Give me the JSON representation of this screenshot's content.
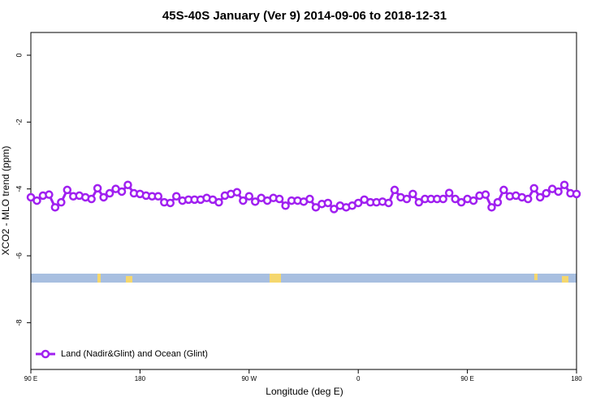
{
  "chart_data": {
    "type": "line",
    "title": "45S-40S January (Ver 9)   2014-09-06 to 2018-12-31",
    "x_label": "Longitude (deg E)",
    "y_label": "XCO2 - MLO trend (ppm)",
    "x": [
      90,
      95,
      100,
      105,
      110,
      115,
      120,
      125,
      130,
      135,
      140,
      145,
      150,
      155,
      160,
      165,
      170,
      175,
      180,
      185,
      190,
      195,
      200,
      205,
      210,
      215,
      220,
      225,
      230,
      235,
      240,
      245,
      250,
      255,
      260,
      265,
      270,
      275,
      280,
      285,
      290,
      295,
      300,
      305,
      310,
      315,
      320,
      325,
      330,
      335,
      340,
      345,
      350,
      355,
      360,
      365,
      370,
      375,
      380,
      385,
      390,
      395,
      400,
      405,
      410,
      415,
      420,
      425,
      430,
      435,
      440,
      445,
      450,
      455,
      460,
      465,
      470,
      475,
      480,
      485,
      490,
      495,
      500,
      505,
      510,
      515,
      520,
      525,
      530,
      535,
      540
    ],
    "series": [
      {
        "name": "Land (Nadir&Glint) and Ocean (Glint)",
        "color": "#a020f0",
        "values": [
          -4.25,
          -4.35,
          -4.2,
          -4.17,
          -4.55,
          -4.4,
          -4.03,
          -4.22,
          -4.2,
          -4.25,
          -4.3,
          -3.98,
          -4.25,
          -4.13,
          -4.0,
          -4.08,
          -3.88,
          -4.13,
          -4.15,
          -4.2,
          -4.22,
          -4.22,
          -4.4,
          -4.42,
          -4.22,
          -4.35,
          -4.32,
          -4.32,
          -4.32,
          -4.27,
          -4.32,
          -4.4,
          -4.2,
          -4.15,
          -4.1,
          -4.35,
          -4.22,
          -4.38,
          -4.27,
          -4.35,
          -4.27,
          -4.3,
          -4.5,
          -4.35,
          -4.35,
          -4.38,
          -4.3,
          -4.55,
          -4.45,
          -4.42,
          -4.6,
          -4.5,
          -4.55,
          -4.5,
          -4.42,
          -4.32,
          -4.4,
          -4.4,
          -4.38,
          -4.42,
          -4.03,
          -4.25,
          -4.3,
          -4.15,
          -4.4,
          -4.3,
          -4.3,
          -4.3,
          -4.3,
          -4.12,
          -4.3,
          -4.4,
          -4.3,
          -4.35,
          -4.2,
          -4.17,
          -4.55,
          -4.4,
          -4.03,
          -4.22,
          -4.2,
          -4.25,
          -4.3,
          -3.98,
          -4.25,
          -4.13,
          -4.0,
          -4.08,
          -3.88,
          -4.13,
          -4.15
        ]
      }
    ],
    "xlim": [
      90,
      540
    ],
    "xticks": [
      {
        "value": 90,
        "label": "90 E"
      },
      180,
      {
        "value": 270,
        "label": "90 W"
      },
      {
        "value": 360,
        "label": "0"
      },
      {
        "value": 450,
        "label": "90 E"
      },
      {
        "value": 540,
        "label": "180"
      }
    ],
    "ylim": [
      -9.4,
      0.68
    ],
    "yticks": [
      0,
      -2,
      -4,
      -6,
      -8
    ],
    "legend": "bottom-left"
  }
}
